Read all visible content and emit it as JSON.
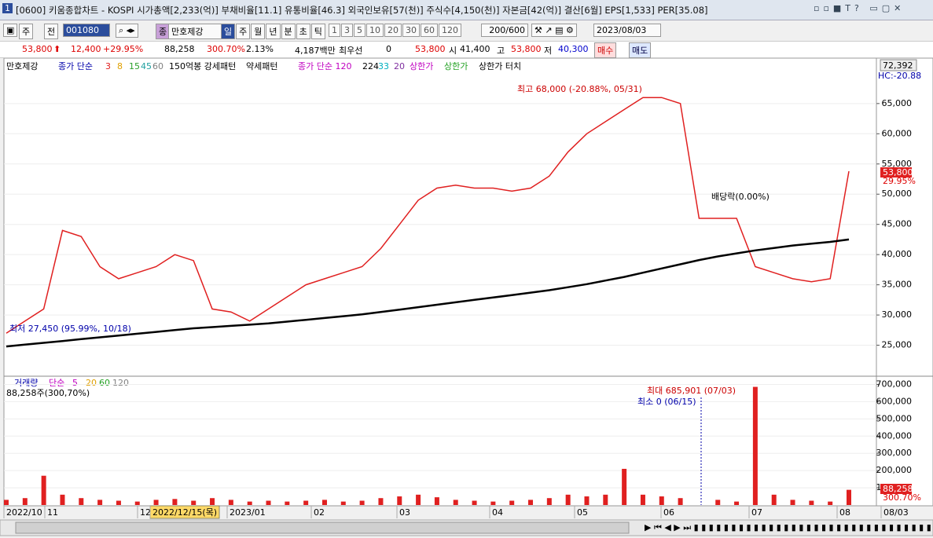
{
  "titlebar": {
    "badge": "1",
    "title": "[0600] 키움종합차트 - KOSPI 시가총액[2,233(억)] 부채비율[11.1] 유통비율[46.3] 외국인보유[57(천)] 주식수[4,150(천)] 자본금[42(억)] 결산[6월] EPS[1,533] PER[35.08]"
  },
  "toolbar": {
    "mode": "주",
    "prev": "전",
    "code": "001080",
    "name_tag": "종",
    "name": "만호제강",
    "periods": [
      "일",
      "주",
      "월",
      "년",
      "분",
      "초",
      "틱"
    ],
    "intervals": [
      "1",
      "3",
      "5",
      "10",
      "20",
      "30",
      "60",
      "120"
    ],
    "count": "200/600",
    "date": "2023/08/03"
  },
  "info": {
    "price": "53,800",
    "change": "12,400",
    "rate": "+29.95%",
    "volume": "88,258",
    "vol_rate": "300.70%",
    "turnover": "2.13%",
    "amount": "4,187백만",
    "best": "최우선",
    "best_qty": "0",
    "best_price": "53,800",
    "open_label": "시",
    "open": "41,400",
    "high_label": "고",
    "high": "53,800",
    "low_label": "저",
    "low": "40,300",
    "buy": "매수",
    "sell": "매도"
  },
  "legend": {
    "name": "만호제강",
    "ma": "종가 단순",
    "ma_periods": [
      "3",
      "8",
      "15",
      "45",
      "60"
    ],
    "pattern1": "150억봉 강세패턴",
    "pattern2": "약세패턴",
    "ma2": "종가 단순 120",
    "ma2_periods": [
      "224",
      "33",
      "20"
    ],
    "limit1": "상한가",
    "limit2": "상한가",
    "limit3": "상한가 터치"
  },
  "volume_legend": {
    "name": "거래량",
    "ma": "단순",
    "periods": [
      "5",
      "20",
      "60",
      "120"
    ],
    "current": "88,258주(300,70%)"
  },
  "chart_data": [
    {
      "type": "line",
      "series": [
        {
          "name": "만호제강",
          "color": "#e02020",
          "values": [
            27000,
            29000,
            31000,
            44000,
            43000,
            38000,
            36000,
            37000,
            38000,
            40000,
            39000,
            31000,
            30500,
            29000,
            31000,
            33000,
            35000,
            36000,
            37000,
            38000,
            41000,
            45000,
            49000,
            51000,
            51500,
            51000,
            51000,
            50500,
            51000,
            53000,
            57000,
            60000,
            62000,
            64000,
            66000,
            66000,
            65000,
            46000,
            46000,
            46000,
            38000,
            37000,
            36000,
            35500,
            36000,
            53800
          ]
        },
        {
          "name": "종가 단순 120",
          "color": "#000000",
          "values": [
            24800,
            25100,
            25400,
            25700,
            26000,
            26300,
            26600,
            26900,
            27200,
            27500,
            27800,
            28000,
            28200,
            28400,
            28600,
            28900,
            29200,
            29500,
            29800,
            30100,
            30500,
            30900,
            31300,
            31700,
            32100,
            32500,
            32900,
            33300,
            33700,
            34100,
            34600,
            35100,
            35700,
            36300,
            37000,
            37700,
            38400,
            39100,
            39700,
            40200,
            40700,
            41100,
            41500,
            41800,
            42100,
            42500
          ]
        }
      ],
      "ylim": [
        20000,
        72000
      ],
      "yticks": [
        {
          "value": 25000,
          "label": "25,000"
        },
        {
          "value": 30000,
          "label": "30,000"
        },
        {
          "value": 35000,
          "label": "35,000"
        },
        {
          "value": 40000,
          "label": "40,000"
        },
        {
          "value": 45000,
          "label": "45,000"
        },
        {
          "value": 50000,
          "label": "50,000"
        },
        {
          "value": 55000,
          "label": "55,000"
        },
        {
          "value": 60000,
          "label": "60,000"
        },
        {
          "value": 65000,
          "label": "65,000"
        }
      ],
      "annotations": {
        "high": "최고 68,000 (-20.88%, 05/31)",
        "low": "최저 27,450 (95.99%, 10/18)",
        "dividend": "배당락(0.00%)",
        "top": "72,392",
        "hc": "HC:-20.88",
        "last": "53,800",
        "last_rate": "29.95%"
      },
      "grid": true
    },
    {
      "type": "bar",
      "series": [
        {
          "name": "거래량",
          "color": "#e02020",
          "values": [
            30000,
            40000,
            170000,
            60000,
            40000,
            30000,
            25000,
            20000,
            30000,
            35000,
            25000,
            40000,
            30000,
            20000,
            25000,
            20000,
            25000,
            30000,
            20000,
            25000,
            40000,
            50000,
            60000,
            45000,
            30000,
            25000,
            20000,
            25000,
            30000,
            40000,
            60000,
            50000,
            60000,
            210000,
            60000,
            50000,
            40000,
            0,
            30000,
            20000,
            685901,
            60000,
            30000,
            25000,
            20000,
            88258
          ]
        }
      ],
      "ylim": [
        0,
        725000
      ],
      "yticks": [
        {
          "value": 100000,
          "label": "100,000"
        },
        {
          "value": 200000,
          "label": "200,000"
        },
        {
          "value": 300000,
          "label": "300,000"
        },
        {
          "value": 400000,
          "label": "400,000"
        },
        {
          "value": 500000,
          "label": "500,000"
        },
        {
          "value": 600000,
          "label": "600,000"
        },
        {
          "value": 700000,
          "label": "700,000"
        }
      ],
      "annotations": {
        "max": "최대 685,901 (07/03)",
        "min": "최소 0 (06/15)",
        "last": "88,258",
        "last_rate": "300.70%"
      },
      "grid": true
    }
  ],
  "x_labels": [
    "2022/10",
    "11",
    "12",
    "2022/12/15(목)",
    "2023/01",
    "02",
    "03",
    "04",
    "05",
    "06",
    "07",
    "08",
    "08/03"
  ]
}
